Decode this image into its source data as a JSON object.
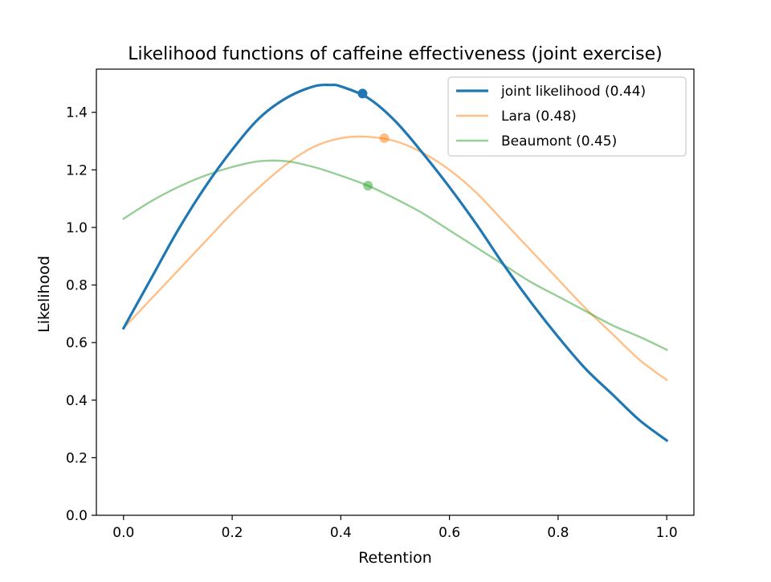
{
  "chart_data": {
    "type": "line",
    "title": "Likelihood functions of caffeine effectiveness (joint exercise)",
    "xlabel": "Retention",
    "ylabel": "Likelihood",
    "xlim": [
      -0.05,
      1.05
    ],
    "ylim": [
      0,
      1.55
    ],
    "xticks": [
      0.0,
      0.2,
      0.4,
      0.6,
      0.8,
      1.0
    ],
    "xtick_labels": [
      "0.0",
      "0.2",
      "0.4",
      "0.6",
      "0.8",
      "1.0"
    ],
    "yticks": [
      0.0,
      0.2,
      0.4,
      0.6,
      0.8,
      1.0,
      1.2,
      1.4
    ],
    "ytick_labels": [
      "0.0",
      "0.2",
      "0.4",
      "0.6",
      "0.8",
      "1.0",
      "1.2",
      "1.4"
    ],
    "grid": false,
    "legend_position": "top-right",
    "series": [
      {
        "name": "joint likelihood (0.44)",
        "color": "#1f77b4",
        "x": [
          0.0,
          0.05,
          0.1,
          0.15,
          0.2,
          0.25,
          0.3,
          0.35,
          0.38,
          0.4,
          0.45,
          0.5,
          0.55,
          0.6,
          0.65,
          0.7,
          0.75,
          0.8,
          0.85,
          0.9,
          0.95,
          1.0
        ],
        "y": [
          0.65,
          0.82,
          0.99,
          1.14,
          1.27,
          1.38,
          1.45,
          1.49,
          1.495,
          1.49,
          1.45,
          1.37,
          1.26,
          1.14,
          1.01,
          0.87,
          0.74,
          0.62,
          0.51,
          0.42,
          0.33,
          0.26
        ],
        "marker": {
          "x": 0.44,
          "y": 1.465
        }
      },
      {
        "name": "Lara (0.48)",
        "color": "#ff7f0e",
        "x": [
          0.0,
          0.05,
          0.1,
          0.15,
          0.2,
          0.25,
          0.3,
          0.35,
          0.4,
          0.45,
          0.5,
          0.55,
          0.6,
          0.65,
          0.7,
          0.75,
          0.8,
          0.85,
          0.9,
          0.95,
          1.0
        ],
        "y": [
          0.65,
          0.75,
          0.85,
          0.95,
          1.05,
          1.14,
          1.22,
          1.28,
          1.31,
          1.315,
          1.3,
          1.26,
          1.2,
          1.12,
          1.02,
          0.92,
          0.82,
          0.72,
          0.63,
          0.54,
          0.47
        ],
        "marker": {
          "x": 0.48,
          "y": 1.31
        }
      },
      {
        "name": "Beaumont (0.45)",
        "color": "#2ca02c",
        "x": [
          0.0,
          0.05,
          0.1,
          0.15,
          0.2,
          0.25,
          0.3,
          0.35,
          0.4,
          0.45,
          0.5,
          0.55,
          0.6,
          0.65,
          0.7,
          0.75,
          0.8,
          0.85,
          0.9,
          0.95,
          1.0
        ],
        "y": [
          1.03,
          1.09,
          1.14,
          1.18,
          1.21,
          1.23,
          1.23,
          1.21,
          1.18,
          1.145,
          1.1,
          1.05,
          0.99,
          0.93,
          0.87,
          0.81,
          0.76,
          0.71,
          0.66,
          0.62,
          0.575
        ],
        "marker": {
          "x": 0.45,
          "y": 1.145
        }
      }
    ]
  }
}
